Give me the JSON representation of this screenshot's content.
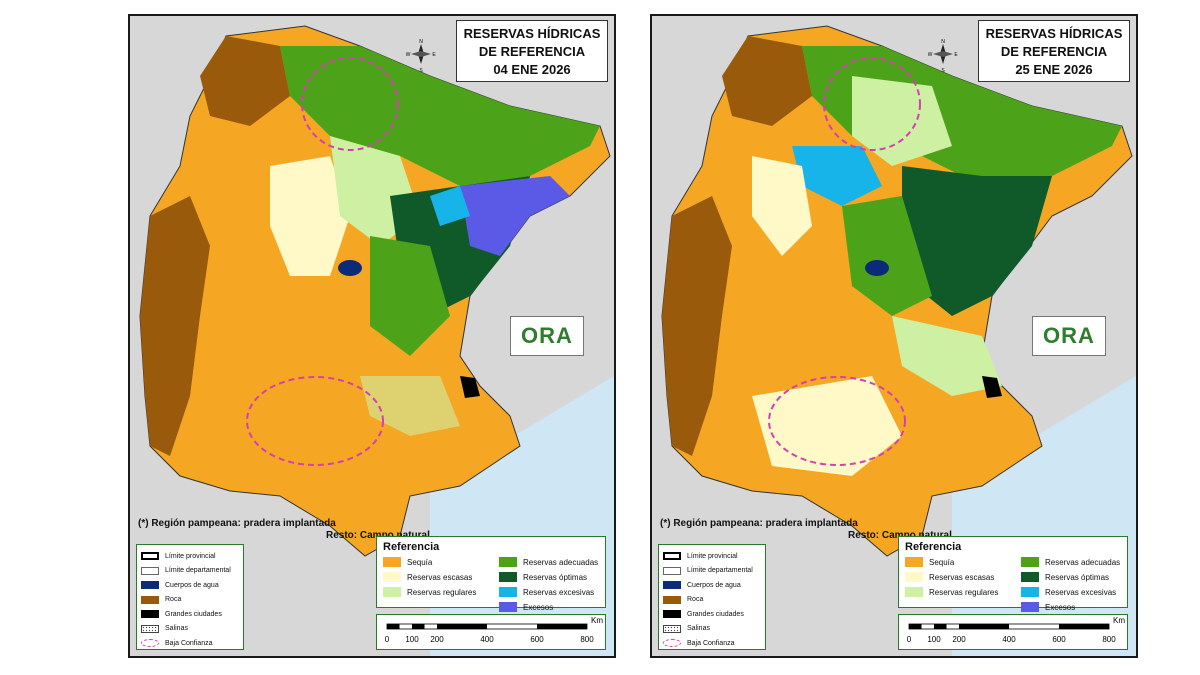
{
  "maps": [
    {
      "title_line1": "RESERVAS HÍDRICAS",
      "title_line2": "DE REFERENCIA",
      "date": "04 ENE 2026"
    },
    {
      "title_line1": "RESERVAS HÍDRICAS",
      "title_line2": "DE REFERENCIA",
      "date": "25 ENE 2026"
    }
  ],
  "compass": {
    "n": "N",
    "s": "S",
    "e": "E",
    "w": "W"
  },
  "logo_text": "ORA",
  "note_line1": "(*) Región pampeana: pradera implantada",
  "note_line2": "Resto: Campo natural",
  "legend_left": [
    {
      "label": "Límite provincial",
      "icon": "thick-border"
    },
    {
      "label": "Límite departamental",
      "icon": "thin-border"
    },
    {
      "label": "Cuerpos de agua",
      "color": "#0b2a78"
    },
    {
      "label": "Roca",
      "color": "#9a5a0c"
    },
    {
      "label": "Grandes ciudades",
      "color": "#000000"
    },
    {
      "label": "Salinas",
      "icon": "dotted"
    },
    {
      "label": "Baja Confianza",
      "icon": "dashed-ellipse",
      "color": "#d63fb0"
    }
  ],
  "legend_right_title": "Referencia",
  "legend_right": [
    {
      "label": "Sequía",
      "color": "#f5a623"
    },
    {
      "label": "Reservas adecuadas",
      "color": "#4ca319"
    },
    {
      "label": "Reservas escasas",
      "color": "#fff9c8"
    },
    {
      "label": "Reservas óptimas",
      "color": "#0f5a28"
    },
    {
      "label": "Reservas regulares",
      "color": "#cdf0a2"
    },
    {
      "label": "Reservas excesivas",
      "color": "#16b4e8"
    },
    {
      "label": "Excesos",
      "color": "#5a5ae6"
    }
  ],
  "scale": {
    "unit": "Km",
    "ticks": [
      "0",
      "100",
      "200",
      "400",
      "600",
      "800"
    ]
  },
  "colors": {
    "sequia": "#f5a623",
    "escasas": "#fff9c8",
    "regulares": "#cdf0a2",
    "adecuadas": "#4ca319",
    "optimas": "#0f5a28",
    "excesivas": "#16b4e8",
    "excesos": "#5a5ae6",
    "roca": "#9a5a0c",
    "agua": "#0b2a78",
    "sea": "#cfe6f4",
    "background": "#d7d7d7"
  }
}
